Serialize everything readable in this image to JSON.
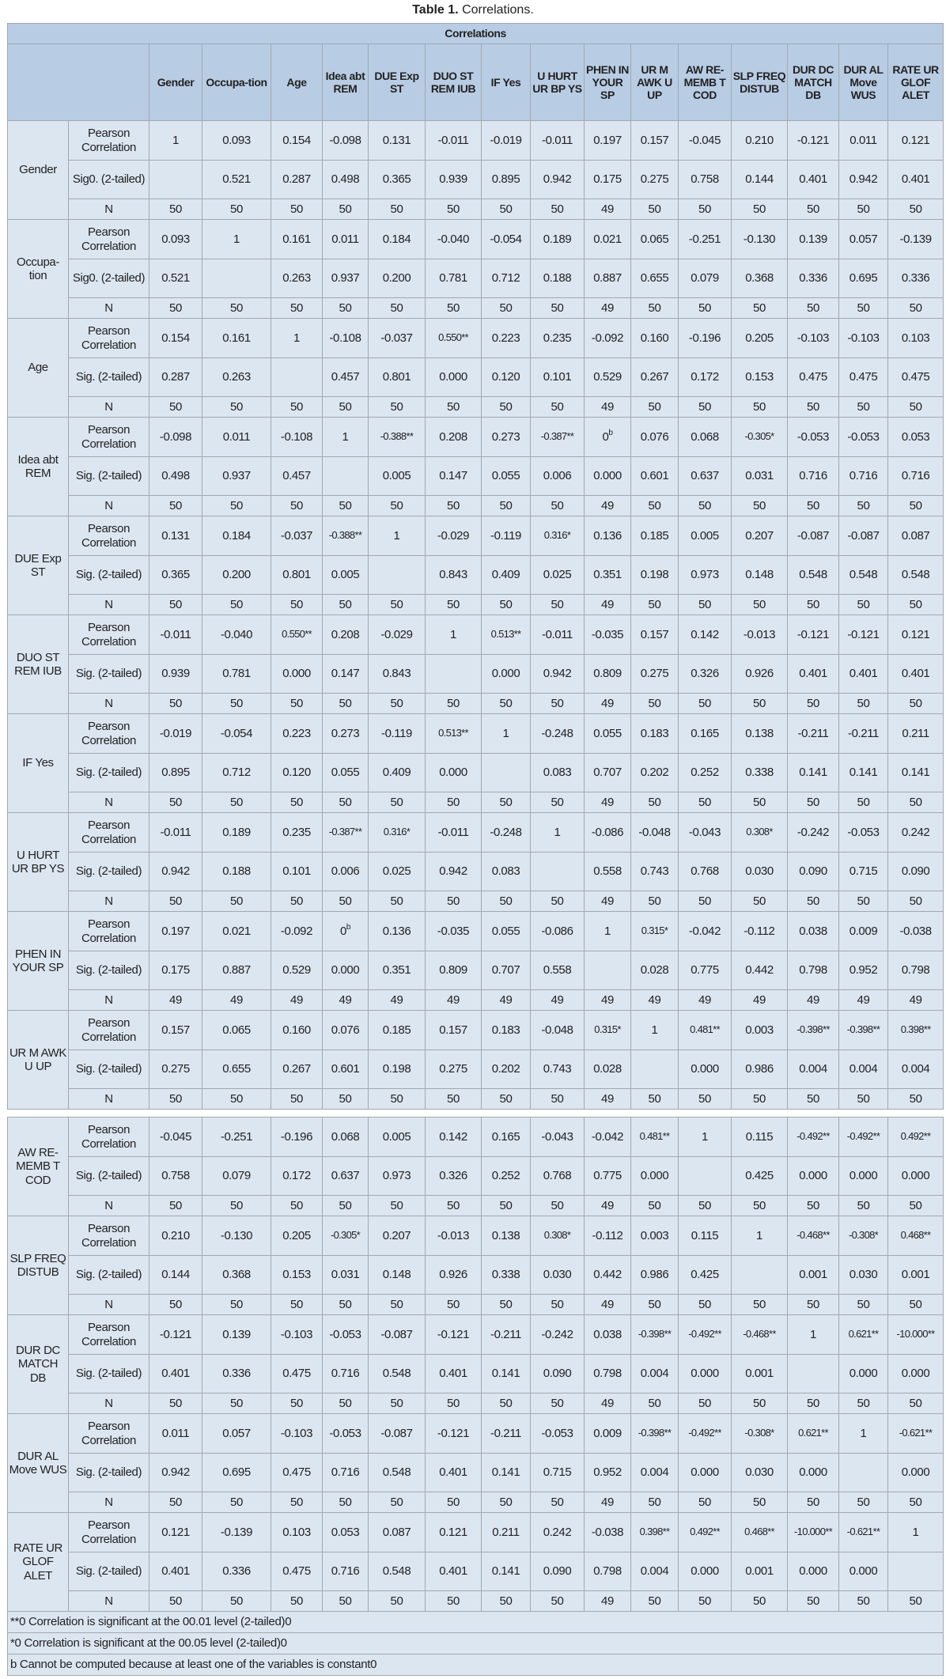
{
  "caption": {
    "label": "Table 1.",
    "text": "Correlations."
  },
  "table_title": "Correlations",
  "columns": [
    "Gender",
    "Occupa-tion",
    "Age",
    "Idea abt REM",
    "DUE Exp ST",
    "DUO ST REM IUB",
    "IF Yes",
    "U HURT UR BP YS",
    "PHEN IN YOUR SP",
    "UR M AWK U UP",
    "AW RE-MEMB T COD",
    "SLP FREQ DISTUB",
    "DUR DC MATCH DB",
    "DUR AL Move WUS",
    "RATE UR GLOF ALET"
  ],
  "pearson_label": "Pearson Correlation",
  "n_label": "N",
  "blocks": [
    {
      "label": "Gender",
      "sig_label": "Sig0. (2-tailed)",
      "pearson": [
        "1",
        "0.093",
        "0.154",
        "-0.098",
        "0.131",
        "-0.011",
        "-0.019",
        "-0.011",
        "0.197",
        "0.157",
        "-0.045",
        "0.210",
        "-0.121",
        "0.011",
        "0.121"
      ],
      "sig": [
        "",
        "0.521",
        "0.287",
        "0.498",
        "0.365",
        "0.939",
        "0.895",
        "0.942",
        "0.175",
        "0.275",
        "0.758",
        "0.144",
        "0.401",
        "0.942",
        "0.401"
      ],
      "n": [
        "50",
        "50",
        "50",
        "50",
        "50",
        "50",
        "50",
        "50",
        "49",
        "50",
        "50",
        "50",
        "50",
        "50",
        "50"
      ]
    },
    {
      "label": "Occupa-tion",
      "sig_label": "Sig0. (2-tailed)",
      "pearson": [
        "0.093",
        "1",
        "0.161",
        "0.011",
        "0.184",
        "-0.040",
        "-0.054",
        "0.189",
        "0.021",
        "0.065",
        "-0.251",
        "-0.130",
        "0.139",
        "0.057",
        "-0.139"
      ],
      "sig": [
        "0.521",
        "",
        "0.263",
        "0.937",
        "0.200",
        "0.781",
        "0.712",
        "0.188",
        "0.887",
        "0.655",
        "0.079",
        "0.368",
        "0.336",
        "0.695",
        "0.336"
      ],
      "n": [
        "50",
        "50",
        "50",
        "50",
        "50",
        "50",
        "50",
        "50",
        "49",
        "50",
        "50",
        "50",
        "50",
        "50",
        "50"
      ]
    },
    {
      "label": "Age",
      "sig_label": "Sig. (2-tailed)",
      "pearson": [
        "0.154",
        "0.161",
        "1",
        "-0.108",
        "-0.037",
        "0.550**",
        "0.223",
        "0.235",
        "-0.092",
        "0.160",
        "-0.196",
        "0.205",
        "-0.103",
        "-0.103",
        "0.103"
      ],
      "sig": [
        "0.287",
        "0.263",
        "",
        "0.457",
        "0.801",
        "0.000",
        "0.120",
        "0.101",
        "0.529",
        "0.267",
        "0.172",
        "0.153",
        "0.475",
        "0.475",
        "0.475"
      ],
      "n": [
        "50",
        "50",
        "50",
        "50",
        "50",
        "50",
        "50",
        "50",
        "49",
        "50",
        "50",
        "50",
        "50",
        "50",
        "50"
      ]
    },
    {
      "label": "Idea abt REM",
      "sig_label": "Sig. (2-tailed)",
      "pearson": [
        "-0.098",
        "0.011",
        "-0.108",
        "1",
        "-0.388**",
        "0.208",
        "0.273",
        "-0.387**",
        "0b",
        "0.076",
        "0.068",
        "-0.305*",
        "-0.053",
        "-0.053",
        "0.053"
      ],
      "sig": [
        "0.498",
        "0.937",
        "0.457",
        "",
        "0.005",
        "0.147",
        "0.055",
        "0.006",
        "0.000",
        "0.601",
        "0.637",
        "0.031",
        "0.716",
        "0.716",
        "0.716"
      ],
      "n": [
        "50",
        "50",
        "50",
        "50",
        "50",
        "50",
        "50",
        "50",
        "49",
        "50",
        "50",
        "50",
        "50",
        "50",
        "50"
      ]
    },
    {
      "label": "DUE Exp ST",
      "sig_label": "Sig. (2-tailed)",
      "pearson": [
        "0.131",
        "0.184",
        "-0.037",
        "-0.388**",
        "1",
        "-0.029",
        "-0.119",
        "0.316*",
        "0.136",
        "0.185",
        "0.005",
        "0.207",
        "-0.087",
        "-0.087",
        "0.087"
      ],
      "sig": [
        "0.365",
        "0.200",
        "0.801",
        "0.005",
        "",
        "0.843",
        "0.409",
        "0.025",
        "0.351",
        "0.198",
        "0.973",
        "0.148",
        "0.548",
        "0.548",
        "0.548"
      ],
      "n": [
        "50",
        "50",
        "50",
        "50",
        "50",
        "50",
        "50",
        "50",
        "49",
        "50",
        "50",
        "50",
        "50",
        "50",
        "50"
      ]
    },
    {
      "label": "DUO ST REM IUB",
      "sig_label": "Sig. (2-tailed)",
      "pearson": [
        "-0.011",
        "-0.040",
        "0.550**",
        "0.208",
        "-0.029",
        "1",
        "0.513**",
        "-0.011",
        "-0.035",
        "0.157",
        "0.142",
        "-0.013",
        "-0.121",
        "-0.121",
        "0.121"
      ],
      "sig": [
        "0.939",
        "0.781",
        "0.000",
        "0.147",
        "0.843",
        "",
        "0.000",
        "0.942",
        "0.809",
        "0.275",
        "0.326",
        "0.926",
        "0.401",
        "0.401",
        "0.401"
      ],
      "n": [
        "50",
        "50",
        "50",
        "50",
        "50",
        "50",
        "50",
        "50",
        "49",
        "50",
        "50",
        "50",
        "50",
        "50",
        "50"
      ]
    },
    {
      "label": "IF Yes",
      "sig_label": "Sig. (2-tailed)",
      "pearson": [
        "-0.019",
        "-0.054",
        "0.223",
        "0.273",
        "-0.119",
        "0.513**",
        "1",
        "-0.248",
        "0.055",
        "0.183",
        "0.165",
        "0.138",
        "-0.211",
        "-0.211",
        "0.211"
      ],
      "sig": [
        "0.895",
        "0.712",
        "0.120",
        "0.055",
        "0.409",
        "0.000",
        "",
        "0.083",
        "0.707",
        "0.202",
        "0.252",
        "0.338",
        "0.141",
        "0.141",
        "0.141"
      ],
      "n": [
        "50",
        "50",
        "50",
        "50",
        "50",
        "50",
        "50",
        "50",
        "49",
        "50",
        "50",
        "50",
        "50",
        "50",
        "50"
      ]
    },
    {
      "label": "U HURT UR BP YS",
      "sig_label": "Sig. (2-tailed)",
      "pearson": [
        "-0.011",
        "0.189",
        "0.235",
        "-0.387**",
        "0.316*",
        "-0.011",
        "-0.248",
        "1",
        "-0.086",
        "-0.048",
        "-0.043",
        "0.308*",
        "-0.242",
        "-0.053",
        "0.242"
      ],
      "sig": [
        "0.942",
        "0.188",
        "0.101",
        "0.006",
        "0.025",
        "0.942",
        "0.083",
        "",
        "0.558",
        "0.743",
        "0.768",
        "0.030",
        "0.090",
        "0.715",
        "0.090"
      ],
      "n": [
        "50",
        "50",
        "50",
        "50",
        "50",
        "50",
        "50",
        "50",
        "49",
        "50",
        "50",
        "50",
        "50",
        "50",
        "50"
      ]
    },
    {
      "label": "PHEN IN YOUR SP",
      "sig_label": "Sig. (2-tailed)",
      "pearson": [
        "0.197",
        "0.021",
        "-0.092",
        "0b",
        "0.136",
        "-0.035",
        "0.055",
        "-0.086",
        "1",
        "0.315*",
        "-0.042",
        "-0.112",
        "0.038",
        "0.009",
        "-0.038"
      ],
      "sig": [
        "0.175",
        "0.887",
        "0.529",
        "0.000",
        "0.351",
        "0.809",
        "0.707",
        "0.558",
        "",
        "0.028",
        "0.775",
        "0.442",
        "0.798",
        "0.952",
        "0.798"
      ],
      "n": [
        "49",
        "49",
        "49",
        "49",
        "49",
        "49",
        "49",
        "49",
        "49",
        "49",
        "49",
        "49",
        "49",
        "49",
        "49"
      ]
    },
    {
      "label": "UR M AWK U UP",
      "sig_label": "Sig. (2-tailed)",
      "pearson": [
        "0.157",
        "0.065",
        "0.160",
        "0.076",
        "0.185",
        "0.157",
        "0.183",
        "-0.048",
        "0.315*",
        "1",
        "0.481**",
        "0.003",
        "-0.398**",
        "-0.398**",
        "0.398**"
      ],
      "sig": [
        "0.275",
        "0.655",
        "0.267",
        "0.601",
        "0.198",
        "0.275",
        "0.202",
        "0.743",
        "0.028",
        "",
        "0.000",
        "0.986",
        "0.004",
        "0.004",
        "0.004"
      ],
      "n": [
        "50",
        "50",
        "50",
        "50",
        "50",
        "50",
        "50",
        "50",
        "49",
        "50",
        "50",
        "50",
        "50",
        "50",
        "50"
      ]
    },
    {
      "label": "AW RE-MEMB T COD",
      "sig_label": "Sig. (2-tailed)",
      "pearson": [
        "-0.045",
        "-0.251",
        "-0.196",
        "0.068",
        "0.005",
        "0.142",
        "0.165",
        "-0.043",
        "-0.042",
        "0.481**",
        "1",
        "0.115",
        "-0.492**",
        "-0.492**",
        "0.492**"
      ],
      "sig": [
        "0.758",
        "0.079",
        "0.172",
        "0.637",
        "0.973",
        "0.326",
        "0.252",
        "0.768",
        "0.775",
        "0.000",
        "",
        "0.425",
        "0.000",
        "0.000",
        "0.000"
      ],
      "n": [
        "50",
        "50",
        "50",
        "50",
        "50",
        "50",
        "50",
        "50",
        "49",
        "50",
        "50",
        "50",
        "50",
        "50",
        "50"
      ]
    },
    {
      "label": "SLP FREQ DISTUB",
      "sig_label": "Sig. (2-tailed)",
      "pearson": [
        "0.210",
        "-0.130",
        "0.205",
        "-0.305*",
        "0.207",
        "-0.013",
        "0.138",
        "0.308*",
        "-0.112",
        "0.003",
        "0.115",
        "1",
        "-0.468**",
        "-0.308*",
        "0.468**"
      ],
      "sig": [
        "0.144",
        "0.368",
        "0.153",
        "0.031",
        "0.148",
        "0.926",
        "0.338",
        "0.030",
        "0.442",
        "0.986",
        "0.425",
        "",
        "0.001",
        "0.030",
        "0.001"
      ],
      "n": [
        "50",
        "50",
        "50",
        "50",
        "50",
        "50",
        "50",
        "50",
        "49",
        "50",
        "50",
        "50",
        "50",
        "50",
        "50"
      ]
    },
    {
      "label": "DUR DC MATCH DB",
      "sig_label": "Sig. (2-tailed)",
      "pearson": [
        "-0.121",
        "0.139",
        "-0.103",
        "-0.053",
        "-0.087",
        "-0.121",
        "-0.211",
        "-0.242",
        "0.038",
        "-0.398**",
        "-0.492**",
        "-0.468**",
        "1",
        "0.621**",
        "-10.000**"
      ],
      "sig": [
        "0.401",
        "0.336",
        "0.475",
        "0.716",
        "0.548",
        "0.401",
        "0.141",
        "0.090",
        "0.798",
        "0.004",
        "0.000",
        "0.001",
        "",
        "0.000",
        "0.000"
      ],
      "n": [
        "50",
        "50",
        "50",
        "50",
        "50",
        "50",
        "50",
        "50",
        "49",
        "50",
        "50",
        "50",
        "50",
        "50",
        "50"
      ]
    },
    {
      "label": "DUR AL Move WUS",
      "sig_label": "Sig. (2-tailed)",
      "pearson": [
        "0.011",
        "0.057",
        "-0.103",
        "-0.053",
        "-0.087",
        "-0.121",
        "-0.211",
        "-0.053",
        "0.009",
        "-0.398**",
        "-0.492**",
        "-0.308*",
        "0.621**",
        "1",
        "-0.621**"
      ],
      "sig": [
        "0.942",
        "0.695",
        "0.475",
        "0.716",
        "0.548",
        "0.401",
        "0.141",
        "0.715",
        "0.952",
        "0.004",
        "0.000",
        "0.030",
        "0.000",
        "",
        "0.000"
      ],
      "n": [
        "50",
        "50",
        "50",
        "50",
        "50",
        "50",
        "50",
        "50",
        "49",
        "50",
        "50",
        "50",
        "50",
        "50",
        "50"
      ]
    },
    {
      "label": "RATE UR GLOF ALET",
      "sig_label": "Sig. (2-tailed)",
      "pearson": [
        "0.121",
        "-0.139",
        "0.103",
        "0.053",
        "0.087",
        "0.121",
        "0.211",
        "0.242",
        "-0.038",
        "0.398**",
        "0.492**",
        "0.468**",
        "-10.000**",
        "-0.621**",
        "1"
      ],
      "sig": [
        "0.401",
        "0.336",
        "0.475",
        "0.716",
        "0.548",
        "0.401",
        "0.141",
        "0.090",
        "0.798",
        "0.004",
        "0.000",
        "0.001",
        "0.000",
        "0.000",
        ""
      ],
      "n": [
        "50",
        "50",
        "50",
        "50",
        "50",
        "50",
        "50",
        "50",
        "49",
        "50",
        "50",
        "50",
        "50",
        "50",
        "50"
      ]
    }
  ],
  "footnotes": [
    "**0 Correlation is significant at the 00.01 level (2-tailed)0",
    "*0 Correlation is significant at the 00.05 level (2-tailed)0",
    "b Cannot be computed because at least one of the variables is constant0"
  ]
}
